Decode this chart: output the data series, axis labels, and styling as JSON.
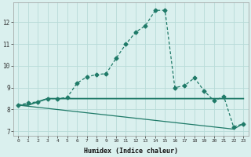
{
  "xlabel": "Humidex (Indice chaleur)",
  "x": [
    0,
    1,
    2,
    3,
    4,
    5,
    6,
    7,
    8,
    9,
    10,
    11,
    12,
    13,
    14,
    15,
    16,
    17,
    18,
    19,
    20,
    21,
    22,
    23
  ],
  "line1": [
    8.2,
    8.3,
    8.35,
    8.5,
    8.5,
    8.55,
    9.2,
    9.5,
    9.6,
    9.65,
    10.35,
    11.0,
    11.55,
    11.85,
    12.55,
    12.55,
    9.0,
    9.1,
    9.45,
    8.85,
    8.4,
    8.6,
    7.2,
    7.35
  ],
  "line2": [
    8.2,
    8.2,
    8.35,
    8.5,
    8.5,
    8.5,
    8.5,
    8.5,
    8.5,
    8.5,
    8.5,
    8.5,
    8.5,
    8.5,
    8.5,
    8.5,
    8.5,
    8.5,
    8.5,
    8.5,
    8.5,
    8.5,
    8.5,
    8.5
  ],
  "line3": [
    8.2,
    8.15,
    8.1,
    8.05,
    8.0,
    7.95,
    7.9,
    7.85,
    7.8,
    7.75,
    7.7,
    7.65,
    7.6,
    7.55,
    7.5,
    7.45,
    7.4,
    7.35,
    7.3,
    7.25,
    7.2,
    7.15,
    7.1,
    7.35
  ],
  "line_color": "#1f7a68",
  "bg_color": "#daf0ee",
  "grid_color": "#b8dbd8",
  "ylim": [
    6.8,
    12.9
  ],
  "yticks": [
    7,
    8,
    9,
    10,
    11,
    12
  ],
  "xlim": [
    -0.5,
    23.5
  ],
  "xticks": [
    0,
    1,
    2,
    3,
    4,
    5,
    6,
    7,
    8,
    9,
    10,
    11,
    12,
    13,
    14,
    15,
    16,
    17,
    18,
    19,
    20,
    21,
    22,
    23
  ]
}
